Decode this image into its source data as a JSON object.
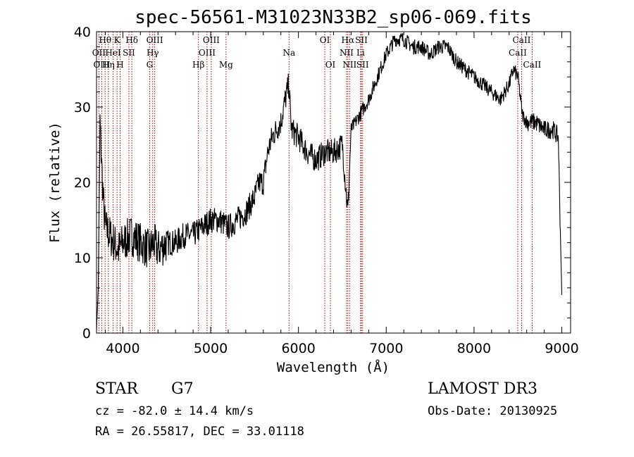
{
  "chart_data": {
    "type": "line",
    "title": "spec-56561-M31023N33B2_sp06-069.fits",
    "xlabel": "Wavelength (Å)",
    "ylabel": "Flux (relative)",
    "xlim": [
      3700,
      9100
    ],
    "ylim": [
      0,
      40
    ],
    "x_ticks": [
      4000,
      5000,
      6000,
      7000,
      8000,
      9000
    ],
    "y_ticks": [
      0,
      10,
      20,
      30,
      40
    ],
    "x_tick_labels": [
      "4000",
      "5000",
      "6000",
      "7000",
      "8000",
      "9000"
    ],
    "y_tick_labels": [
      "0",
      "10",
      "20",
      "30",
      "40"
    ],
    "series": [
      {
        "name": "flux",
        "x": [
          3700,
          3720,
          3740,
          3760,
          3780,
          3800,
          3850,
          3900,
          3950,
          4000,
          4100,
          4200,
          4300,
          4350,
          4400,
          4500,
          4600,
          4700,
          4800,
          4900,
          5000,
          5100,
          5200,
          5300,
          5400,
          5500,
          5550,
          5600,
          5650,
          5700,
          5750,
          5800,
          5850,
          5890,
          5920,
          6000,
          6100,
          6200,
          6300,
          6400,
          6500,
          6563,
          6600,
          6650,
          6700,
          6800,
          6900,
          7000,
          7100,
          7200,
          7300,
          7400,
          7500,
          7600,
          7700,
          7800,
          7900,
          8000,
          8100,
          8200,
          8300,
          8400,
          8450,
          8500,
          8550,
          8600,
          8700,
          8800,
          8900,
          8960,
          9000
        ],
        "y": [
          0.5,
          6,
          28,
          22,
          17,
          14,
          13,
          12,
          11,
          12,
          13,
          12,
          11,
          12,
          11,
          12,
          12,
          13,
          13,
          14,
          15,
          15,
          14,
          15,
          16,
          18,
          20,
          20,
          24,
          26,
          27,
          28,
          31,
          33,
          27,
          26,
          24,
          23,
          24,
          24,
          25,
          16,
          27,
          28,
          29,
          31,
          34,
          37,
          39,
          39,
          38,
          38,
          37,
          38,
          38,
          36,
          35,
          34,
          33,
          32,
          31,
          33,
          35,
          34,
          29,
          28,
          28,
          27,
          27,
          26,
          5
        ]
      }
    ],
    "spectral_lines": [
      {
        "label": "Hθ",
        "x": 3798,
        "row": 1
      },
      {
        "label": "K",
        "x": 3934,
        "row": 1
      },
      {
        "label": "Hδ",
        "x": 4102,
        "row": 1
      },
      {
        "label": "OII",
        "x": 3727,
        "row": 2
      },
      {
        "label": "HeI",
        "x": 3889,
        "row": 2
      },
      {
        "label": "SII",
        "x": 4069,
        "row": 2
      },
      {
        "label": "OIII",
        "x": 3760,
        "row": 3
      },
      {
        "label": "Hη",
        "x": 3835,
        "row": 3
      },
      {
        "label": "H",
        "x": 3969,
        "row": 3
      },
      {
        "label": "OIII",
        "x": 4363,
        "row": 1
      },
      {
        "label": "Hγ",
        "x": 4340,
        "row": 2
      },
      {
        "label": "G",
        "x": 4305,
        "row": 3
      },
      {
        "label": "OIII",
        "x": 5007,
        "row": 1
      },
      {
        "label": "OIII",
        "x": 4959,
        "row": 2
      },
      {
        "label": "Hβ",
        "x": 4861,
        "row": 3
      },
      {
        "label": "Mg",
        "x": 5175,
        "row": 3
      },
      {
        "label": "Na",
        "x": 5893,
        "row": 2
      },
      {
        "label": "OI",
        "x": 6300,
        "row": 1
      },
      {
        "label": "OI",
        "x": 6364,
        "row": 3
      },
      {
        "label": "Hα",
        "x": 6563,
        "row": 1
      },
      {
        "label": "NII",
        "x": 6548,
        "row": 2
      },
      {
        "label": "NII",
        "x": 6583,
        "row": 3
      },
      {
        "label": "SII",
        "x": 6717,
        "row": 1
      },
      {
        "label": "Li",
        "x": 6708,
        "row": 2
      },
      {
        "label": "SII",
        "x": 6731,
        "row": 3
      },
      {
        "label": "CaII",
        "x": 8542,
        "row": 1
      },
      {
        "label": "CaII",
        "x": 8498,
        "row": 2
      },
      {
        "label": "CaII",
        "x": 8662,
        "row": 3
      }
    ],
    "line_color": "#000000",
    "marker_color": "#b40000"
  },
  "info": {
    "object_class": "STAR",
    "subclass": "G7",
    "redshift": "cz = -82.0 ± 14.4 km/s",
    "coords": "RA =  26.55817, DEC =  33.01118",
    "survey": "LAMOST DR3",
    "obs_date": "Obs-Date: 20130925"
  }
}
